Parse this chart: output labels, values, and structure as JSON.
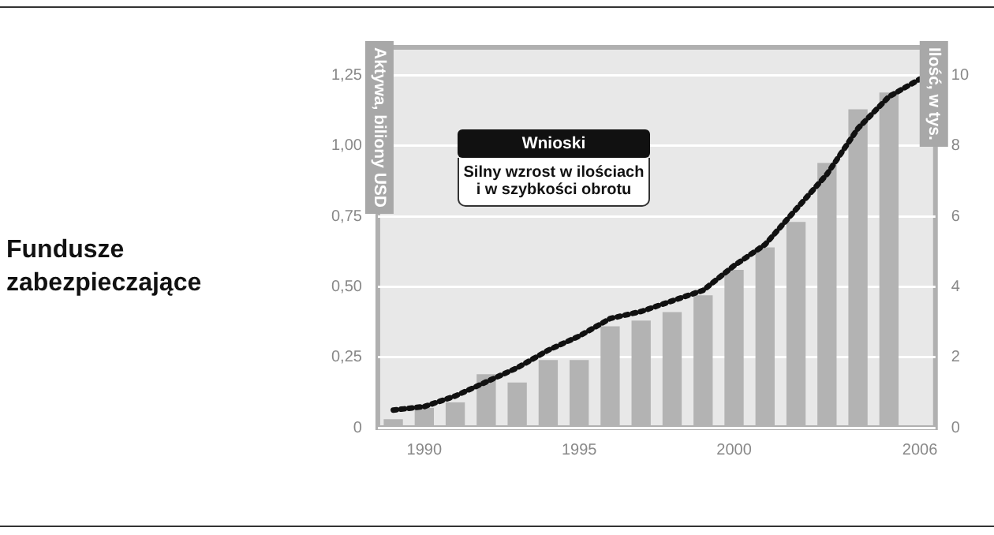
{
  "chart_data": {
    "type": "bar",
    "title": "Fundusze zabezpieczające",
    "ylabel": "Aktywa, biliony USD",
    "y2label": "Ilość, w tys.",
    "annotations": [
      "Wnioski",
      "Silny wzrost w ilościach i w szybkości obrotu"
    ],
    "categories": [
      null,
      "1990",
      null,
      null,
      null,
      null,
      "1995",
      null,
      null,
      null,
      null,
      "2000",
      null,
      null,
      null,
      null,
      null,
      "2006"
    ],
    "series": [
      {
        "color": "#b3b3b3",
        "values": [
          0.03,
          0.07,
          0.09,
          0.19,
          0.16,
          0.24,
          0.24,
          0.36,
          0.38,
          0.41,
          0.47,
          0.56,
          0.64,
          0.73,
          0.94,
          1.13,
          1.19,
          null
        ]
      },
      {
        "type": "line",
        "axis": "y2",
        "color": "#111111",
        "line_style": "dotted",
        "values": [
          0.5,
          0.6,
          0.9,
          1.3,
          1.7,
          2.2,
          2.6,
          3.1,
          3.3,
          3.6,
          3.9,
          4.6,
          5.2,
          6.2,
          7.2,
          8.5,
          9.4,
          9.9
        ]
      }
    ],
    "ylim": [
      0,
      1.35
    ],
    "yticks": [
      {
        "value": 0,
        "label": "0"
      },
      {
        "value": 0.25,
        "label": "0,25"
      },
      {
        "value": 0.5,
        "label": "0,50"
      },
      {
        "value": 0.75,
        "label": "0,75"
      },
      {
        "value": 1,
        "label": "1,00"
      },
      {
        "value": 1.25,
        "label": "1,25"
      }
    ],
    "y2lim": [
      0,
      10.8
    ],
    "y2ticks": [
      0,
      2,
      4,
      6,
      8,
      10
    ],
    "grid": "y",
    "legend": false,
    "marker": "none"
  }
}
